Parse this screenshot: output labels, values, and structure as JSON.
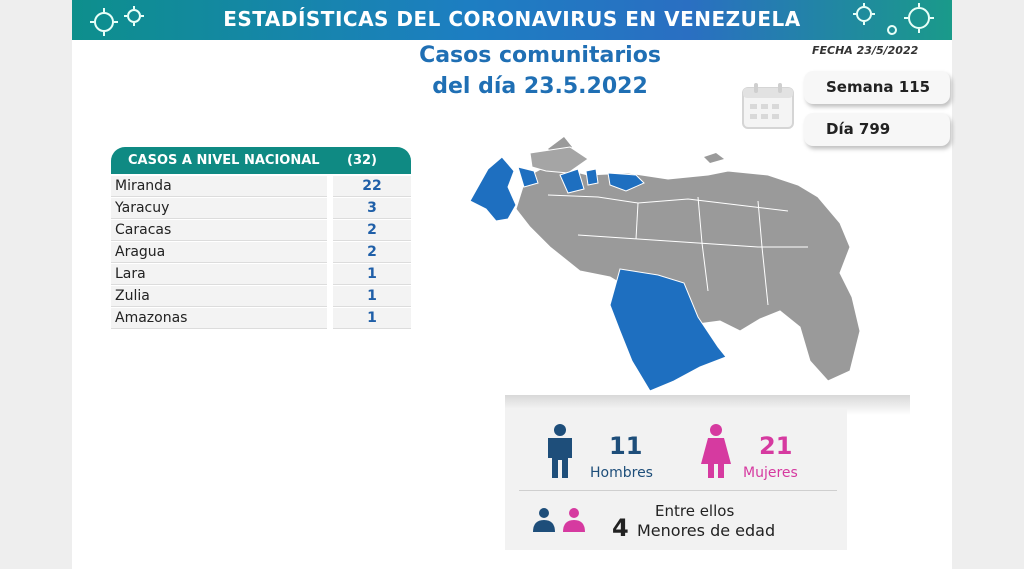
{
  "banner": {
    "title": "ESTADÍSTICAS DEL CORONAVIRUS EN VENEZUELA"
  },
  "headline": {
    "line1": "Casos comunitarios",
    "line2": "del día 23.5.2022"
  },
  "fecha": "FECHA 23/5/2022",
  "semana": "Semana 115",
  "dia": "Día 799",
  "table": {
    "header_label": "CASOS A NIVEL NACIONAL",
    "header_total": "(32)",
    "rows": [
      {
        "state": "Miranda",
        "cases": "22"
      },
      {
        "state": "Yaracuy",
        "cases": "3"
      },
      {
        "state": "Caracas",
        "cases": "2"
      },
      {
        "state": "Aragua",
        "cases": "2"
      },
      {
        "state": "Lara",
        "cases": "1"
      },
      {
        "state": "Zulia",
        "cases": "1"
      },
      {
        "state": "Amazonas",
        "cases": "1"
      }
    ]
  },
  "stats": {
    "men_count": "11",
    "men_label": "Hombres",
    "women_count": "21",
    "women_label": "Mujeres",
    "minors_intro": "Entre ellos",
    "minors_count": "4",
    "minors_label": "Menores de edad"
  },
  "colors": {
    "banner": "#1d7ec2",
    "teal": "#0f8a83",
    "blue": "#1f6fb4",
    "map_highlight": "#1e6fc0",
    "map_gray": "#9a9a9a",
    "men": "#1e4e7a",
    "women": "#d63aa0"
  },
  "icons": [
    "virus-icon",
    "calendar-icon",
    "man-icon",
    "woman-icon",
    "children-icon"
  ]
}
